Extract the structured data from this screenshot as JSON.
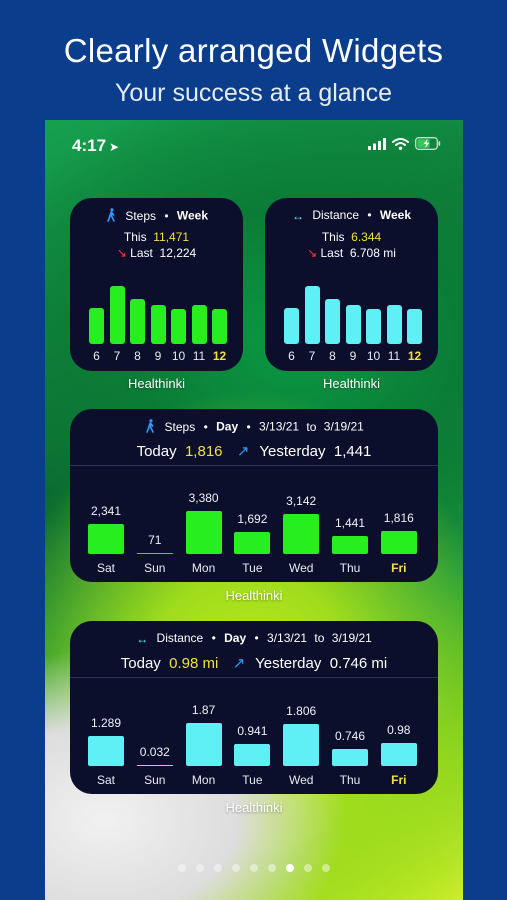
{
  "headline": "Clearly arranged Widgets",
  "subheadline": "Your success at a glance",
  "status": {
    "time": "4:17",
    "battery_fraction": 0.7
  },
  "colors": {
    "steps": "#27ee1e",
    "distance": "#5ff0f6",
    "current": "#f3e13b",
    "widget_bg": "#0b0f2c"
  },
  "widget_label": "Healthinki",
  "steps_week": {
    "metric": "Steps",
    "period": "Week",
    "this_label": "This",
    "this_value": "11,471",
    "last_label": "Last",
    "last_value": "12,224",
    "bars": [
      {
        "label": "6",
        "value": 0.62
      },
      {
        "label": "7",
        "value": 1.0
      },
      {
        "label": "8",
        "value": 0.78
      },
      {
        "label": "9",
        "value": 0.68
      },
      {
        "label": "10",
        "value": 0.6
      },
      {
        "label": "11",
        "value": 0.67
      },
      {
        "label": "12",
        "value": 0.6,
        "current": true
      }
    ]
  },
  "distance_week": {
    "metric": "Distance",
    "period": "Week",
    "this_label": "This",
    "this_value": "6.344",
    "last_label": "Last",
    "last_value": "6.708 mi",
    "bars": [
      {
        "label": "6",
        "value": 0.62
      },
      {
        "label": "7",
        "value": 1.0
      },
      {
        "label": "8",
        "value": 0.78
      },
      {
        "label": "9",
        "value": 0.68
      },
      {
        "label": "10",
        "value": 0.6
      },
      {
        "label": "11",
        "value": 0.67
      },
      {
        "label": "12",
        "value": 0.6,
        "current": true
      }
    ]
  },
  "steps_day": {
    "metric": "Steps",
    "period": "Day",
    "from": "3/13/21",
    "to_word": "to",
    "to": "3/19/21",
    "today_label": "Today",
    "today_value": "1,816",
    "yesterday_label": "Yesterday",
    "yesterday_value": "1,441",
    "days": [
      {
        "label": "Sat",
        "value": 2341,
        "text": "2,341"
      },
      {
        "label": "Sun",
        "value": 71,
        "text": "71"
      },
      {
        "label": "Mon",
        "value": 3380,
        "text": "3,380"
      },
      {
        "label": "Tue",
        "value": 1692,
        "text": "1,692"
      },
      {
        "label": "Wed",
        "value": 3142,
        "text": "3,142"
      },
      {
        "label": "Thu",
        "value": 1441,
        "text": "1,441"
      },
      {
        "label": "Fri",
        "value": 1816,
        "text": "1,816",
        "current": true
      }
    ]
  },
  "distance_day": {
    "metric": "Distance",
    "period": "Day",
    "from": "3/13/21",
    "to_word": "to",
    "to": "3/19/21",
    "today_label": "Today",
    "today_value": "0.98 mi",
    "yesterday_label": "Yesterday",
    "yesterday_value": "0.746 mi",
    "days": [
      {
        "label": "Sat",
        "value": 1.289,
        "text": "1.289"
      },
      {
        "label": "Sun",
        "value": 0.032,
        "text": "0.032"
      },
      {
        "label": "Mon",
        "value": 1.87,
        "text": "1.87"
      },
      {
        "label": "Tue",
        "value": 0.941,
        "text": "0.941"
      },
      {
        "label": "Wed",
        "value": 1.806,
        "text": "1.806"
      },
      {
        "label": "Thu",
        "value": 0.746,
        "text": "0.746"
      },
      {
        "label": "Fri",
        "value": 0.98,
        "text": "0.98",
        "current": true
      }
    ]
  },
  "page_dots": {
    "count": 9,
    "active_index": 6
  }
}
